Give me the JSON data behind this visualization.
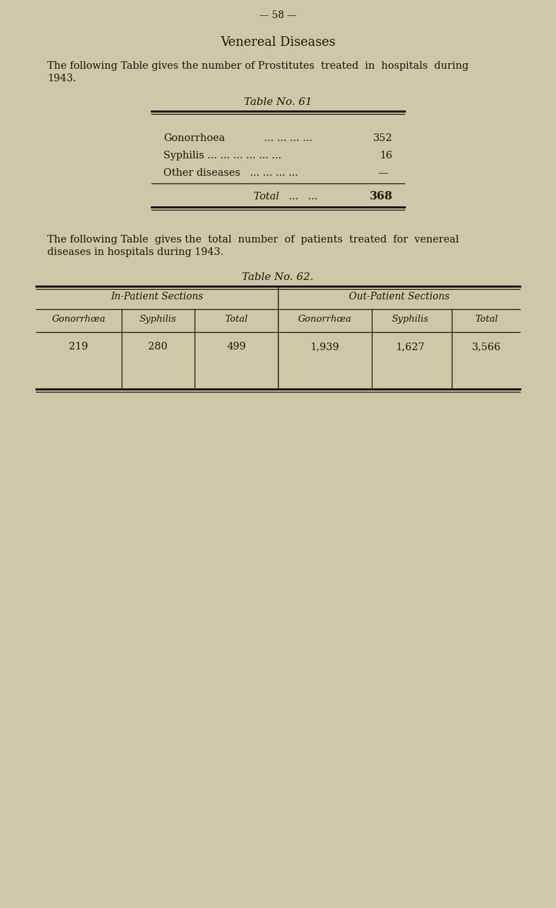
{
  "bg_color": "#cfc8a8",
  "page_number": "— 58 —",
  "section_title": "Venereal Diseases",
  "para1_line1": "The following Table gives the number of Prostitutes  treated  in  hospitals  during",
  "para1_line2": "1943.",
  "table1_title": "Table No. 61",
  "row1_label": "Gonorrhoea",
  "row1_dots": "... ... ... ...",
  "row1_val": "352",
  "row2_label": "Syphilis ... ... ... ... ... ...",
  "row2_val": "16",
  "row3_label": "Other diseases   ... ... ... ...",
  "row3_val": "—",
  "total_label": "Total   ...   ...",
  "total_val": "368",
  "para2_line1": "The following Table  gives the  total  number  of  patients  treated  for  venereal",
  "para2_line2": "diseases in hospitals during 1943.",
  "table2_title": "Table No. 62.",
  "table2_section1": "In-Patient Sections",
  "table2_section2": "Out-Patient Sections",
  "table2_col_headers": [
    "Gonorrhœa",
    "Syphilis",
    "Total",
    "Gonorrhœa",
    "Syphilis",
    "Total"
  ],
  "table2_data": [
    "219",
    "280",
    "499",
    "1,939",
    "1,627",
    "3,566"
  ],
  "text_color": "#1a1508",
  "line_color": "#1a1508"
}
